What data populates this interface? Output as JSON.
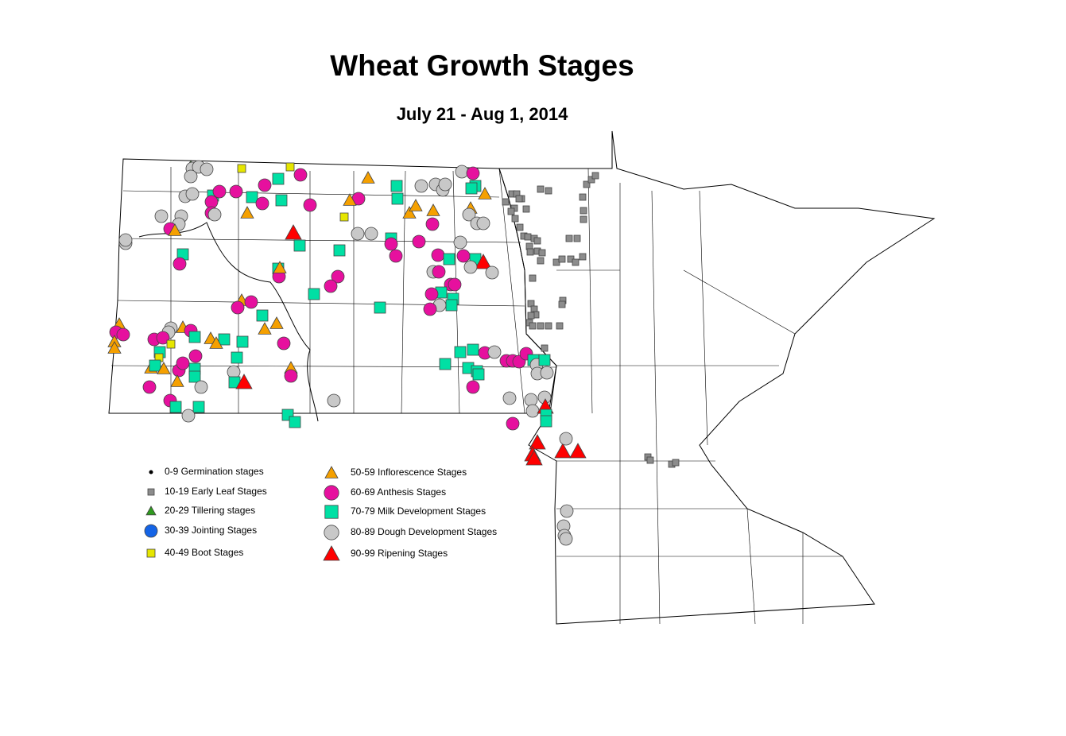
{
  "map": {
    "title": "Wheat Growth Stages",
    "subtitle": "July 21 - Aug 1, 2014"
  },
  "legend": [
    {
      "label": "0-9 Germination stages",
      "shape": "dot",
      "color": "#000000"
    },
    {
      "label": "10-19 Early Leaf Stages",
      "shape": "square",
      "color": "#8c8c8c"
    },
    {
      "label": "20-29 Tillering stages",
      "shape": "triangle",
      "color": "#2f9a1e"
    },
    {
      "label": "30-39 Jointing Stages",
      "shape": "circle",
      "color": "#1464e6"
    },
    {
      "label": "40-49 Boot Stages",
      "shape": "square",
      "color": "#e6e600"
    },
    {
      "label": "50-59 Inflorescence Stages",
      "shape": "triangle",
      "color": "#f5a000"
    },
    {
      "label": "60-69 Anthesis Stages",
      "shape": "circle",
      "color": "#e6109e"
    },
    {
      "label": "70-79 Milk Development Stages",
      "shape": "square",
      "color": "#00e0a4"
    },
    {
      "label": "80-89 Dough Development Stages",
      "shape": "circle",
      "color": "#c8c8c8"
    },
    {
      "label": "90-99 Ripening Stages",
      "shape": "triangle",
      "color": "#ff0000"
    }
  ]
}
